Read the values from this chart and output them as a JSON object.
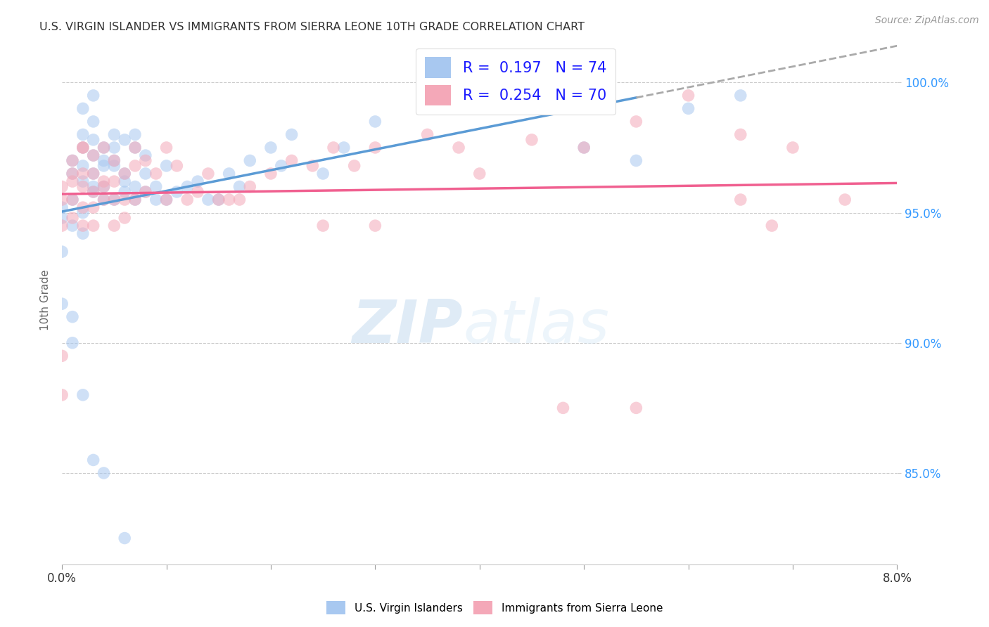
{
  "title": "U.S. VIRGIN ISLANDER VS IMMIGRANTS FROM SIERRA LEONE 10TH GRADE CORRELATION CHART",
  "source": "Source: ZipAtlas.com",
  "ylabel": "10th Grade",
  "x_min": 0.0,
  "x_max": 0.08,
  "y_min": 81.5,
  "y_max": 101.8,
  "blue_color": "#A8C8F0",
  "pink_color": "#F4A8B8",
  "trend_blue": "#5B9BD5",
  "trend_pink": "#F06090",
  "dashed_color": "#AAAAAA",
  "watermark_zip": "ZIP",
  "watermark_atlas": "atlas",
  "blue_scatter_x": [
    0.0,
    0.0,
    0.001,
    0.001,
    0.001,
    0.001,
    0.002,
    0.002,
    0.002,
    0.002,
    0.002,
    0.002,
    0.003,
    0.003,
    0.003,
    0.003,
    0.003,
    0.003,
    0.004,
    0.004,
    0.004,
    0.004,
    0.004,
    0.005,
    0.005,
    0.005,
    0.005,
    0.005,
    0.006,
    0.006,
    0.006,
    0.006,
    0.007,
    0.007,
    0.007,
    0.007,
    0.008,
    0.008,
    0.008,
    0.009,
    0.009,
    0.01,
    0.01,
    0.011,
    0.012,
    0.013,
    0.014,
    0.015,
    0.016,
    0.017,
    0.018,
    0.02,
    0.021,
    0.022,
    0.025,
    0.027,
    0.03,
    0.035,
    0.04,
    0.045,
    0.05,
    0.055,
    0.06,
    0.065,
    0.002,
    0.003,
    0.0,
    0.0,
    0.001,
    0.001,
    0.002,
    0.003,
    0.004,
    0.006
  ],
  "blue_scatter_y": [
    95.2,
    94.8,
    96.5,
    97.0,
    95.5,
    94.5,
    96.8,
    97.5,
    98.0,
    95.0,
    96.2,
    94.2,
    97.2,
    95.8,
    96.5,
    98.5,
    97.8,
    96.0,
    97.5,
    96.8,
    95.5,
    97.0,
    96.0,
    97.0,
    95.5,
    96.8,
    98.0,
    97.5,
    96.5,
    97.8,
    96.2,
    95.8,
    97.5,
    96.0,
    95.5,
    98.0,
    96.5,
    95.8,
    97.2,
    96.0,
    95.5,
    96.8,
    95.5,
    95.8,
    96.0,
    96.2,
    95.5,
    95.5,
    96.5,
    96.0,
    97.0,
    97.5,
    96.8,
    98.0,
    96.5,
    97.5,
    98.5,
    99.5,
    99.8,
    100.5,
    97.5,
    97.0,
    99.0,
    99.5,
    99.0,
    99.5,
    93.5,
    91.5,
    91.0,
    90.0,
    88.0,
    85.5,
    85.0,
    82.5
  ],
  "pink_scatter_x": [
    0.0,
    0.0,
    0.0,
    0.001,
    0.001,
    0.001,
    0.001,
    0.002,
    0.002,
    0.002,
    0.002,
    0.002,
    0.003,
    0.003,
    0.003,
    0.003,
    0.003,
    0.004,
    0.004,
    0.004,
    0.004,
    0.005,
    0.005,
    0.005,
    0.005,
    0.006,
    0.006,
    0.006,
    0.007,
    0.007,
    0.007,
    0.008,
    0.008,
    0.009,
    0.01,
    0.01,
    0.011,
    0.012,
    0.013,
    0.014,
    0.015,
    0.016,
    0.017,
    0.018,
    0.02,
    0.022,
    0.024,
    0.026,
    0.028,
    0.03,
    0.035,
    0.038,
    0.04,
    0.045,
    0.05,
    0.055,
    0.06,
    0.065,
    0.07,
    0.075,
    0.025,
    0.03,
    0.048,
    0.055,
    0.065,
    0.068,
    0.0,
    0.0,
    0.001,
    0.002
  ],
  "pink_scatter_y": [
    94.5,
    95.5,
    96.0,
    94.8,
    96.2,
    97.0,
    95.5,
    94.5,
    96.0,
    97.5,
    95.2,
    96.5,
    95.2,
    96.5,
    97.2,
    95.8,
    94.5,
    96.0,
    95.5,
    97.5,
    96.2,
    97.0,
    95.5,
    94.5,
    96.2,
    96.5,
    95.5,
    94.8,
    96.8,
    97.5,
    95.5,
    95.8,
    97.0,
    96.5,
    95.5,
    97.5,
    96.8,
    95.5,
    95.8,
    96.5,
    95.5,
    95.5,
    95.5,
    96.0,
    96.5,
    97.0,
    96.8,
    97.5,
    96.8,
    97.5,
    98.0,
    97.5,
    96.5,
    97.8,
    97.5,
    98.5,
    99.5,
    98.0,
    97.5,
    95.5,
    94.5,
    94.5,
    87.5,
    87.5,
    95.5,
    94.5,
    88.0,
    89.5,
    96.5,
    97.5
  ],
  "y_tick_vals": [
    85,
    90,
    95,
    100
  ],
  "y_tick_labels": [
    "85.0%",
    "90.0%",
    "95.0%",
    "100.0%"
  ]
}
